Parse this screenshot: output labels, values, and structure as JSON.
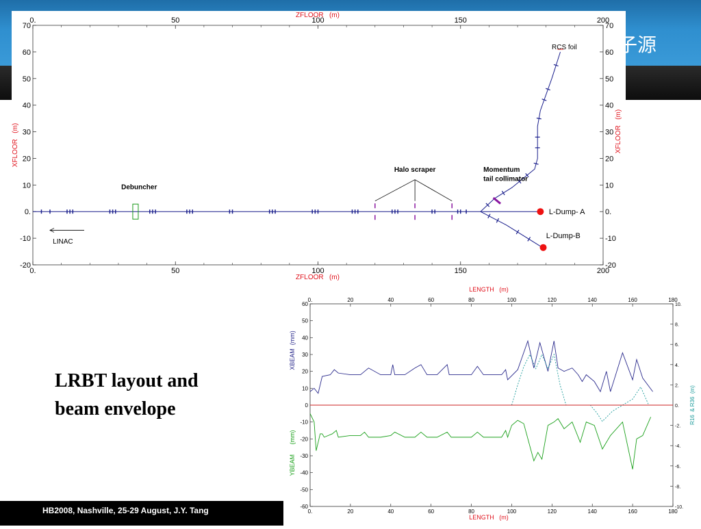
{
  "slide": {
    "header_title": "子源",
    "caption": "LRBT layout and\nbeam envelope",
    "footer": "HB2008, Nashville, 25-29  August, J.Y. Tang"
  },
  "colors": {
    "header_band": "#2f8fcf",
    "axis_label_red": "#e0101a",
    "beamline_blue": "#1a1f8c",
    "xbeam_blue": "#2a2a8c",
    "ybeam_green": "#1aa01a",
    "r16_r36_teal": "#1a9a9a",
    "zero_line_red": "#cc2222",
    "scraper_purple": "#8a16a0",
    "dump_red": "#ee1111"
  },
  "chart_data": [
    {
      "type": "line",
      "title": "",
      "xlabel": "ZFLOOR   (m)",
      "ylabel": "XFLOOR   (m)",
      "xlim": [
        0,
        200
      ],
      "ylim": [
        -20,
        70
      ],
      "x_ticks": [
        0,
        50,
        100,
        150,
        200
      ],
      "x_tick_labels": [
        "0.",
        "50",
        "100",
        "150",
        "200"
      ],
      "y_ticks": [
        -20,
        -10,
        0,
        10,
        20,
        30,
        40,
        50,
        60,
        70
      ],
      "y_tick_labels": [
        "-20",
        "-10",
        "0.",
        "10",
        "20",
        "30",
        "40",
        "50",
        "60",
        "70"
      ],
      "grid": false,
      "series": [
        {
          "x": [
            0,
            157
          ],
          "y": [
            0,
            0
          ]
        },
        {
          "x": [
            157,
            162,
            168,
            176,
            177,
            177,
            178,
            182,
            185
          ],
          "y": [
            0,
            5,
            9,
            16,
            20,
            32,
            38,
            50,
            60
          ]
        },
        {
          "x": [
            157,
            178
          ],
          "y": [
            0,
            0
          ]
        },
        {
          "x": [
            157,
            166,
            178
          ],
          "y": [
            0,
            -5,
            -13
          ]
        }
      ],
      "magnets_z_on_linac": [
        3,
        6,
        12,
        13,
        14,
        27,
        28,
        29,
        41,
        42,
        43,
        54,
        55,
        56,
        69,
        70,
        83,
        84,
        85,
        98,
        99,
        100,
        112,
        113,
        114,
        126,
        127,
        128,
        140,
        141,
        149,
        150,
        152
      ],
      "debuncher_z": 36,
      "halo_scraper_z": [
        120,
        134,
        147
      ],
      "annotations": [
        {
          "text": "RCS foil",
          "x": 182,
          "y": 62
        },
        {
          "text": "Halo scraper",
          "x": 134,
          "y": 16
        },
        {
          "text": "Momentum",
          "x": 158,
          "y": 16
        },
        {
          "text": "tail collimator",
          "x": 158,
          "y": 12.5
        },
        {
          "text": "Debuncher",
          "x": 31,
          "y": 9.5
        },
        {
          "text": "L-Dump- A",
          "x": 181,
          "y": 0
        },
        {
          "text": "L-Dump-B",
          "x": 180,
          "y": -9
        },
        {
          "text": "LINAC",
          "x": 7,
          "y": -11
        }
      ],
      "dumps": [
        {
          "label": "L-Dump- A",
          "x": 178,
          "y": 0
        },
        {
          "label": "L-Dump-B",
          "x": 179,
          "y": -13.5
        }
      ]
    },
    {
      "type": "line",
      "title": "",
      "xlabel": "LENGTH   (m)",
      "ylabel": "XBEAM  (mm)",
      "y2label": "R16  & R36  (m)",
      "xlim": [
        0,
        180
      ],
      "ylim": [
        -60,
        60
      ],
      "y2lim": [
        -10,
        10
      ],
      "x_ticks": [
        0,
        20,
        40,
        60,
        80,
        100,
        120,
        140,
        160,
        180
      ],
      "y_ticks": [
        -60,
        -50,
        -40,
        -30,
        -20,
        -10,
        0,
        10,
        20,
        30,
        40,
        50,
        60
      ],
      "y2_ticks": [
        -10,
        -8,
        -6,
        -4,
        -2,
        0,
        2,
        4,
        6,
        8,
        10
      ],
      "grid": false,
      "series": [
        {
          "name": "XBEAM",
          "axis": "left",
          "x": [
            0,
            2,
            4,
            6,
            10,
            12,
            14,
            20,
            25,
            27,
            29,
            35,
            40,
            41,
            42,
            47,
            52,
            55,
            58,
            63,
            68,
            69,
            70,
            75,
            80,
            83,
            86,
            90,
            95,
            97,
            98,
            103,
            108,
            111,
            114,
            118,
            121,
            123,
            126,
            130,
            133,
            135,
            137,
            141,
            144,
            147,
            149,
            155,
            160,
            162,
            165,
            170
          ],
          "y": [
            8,
            10,
            7,
            17,
            18,
            21,
            19,
            18,
            18,
            20,
            22,
            18,
            18,
            24,
            18,
            18,
            22,
            24,
            18,
            18,
            24,
            18,
            18,
            18,
            18,
            23,
            18,
            18,
            18,
            21,
            15,
            21,
            38,
            22,
            37,
            20,
            38,
            22,
            20,
            22,
            18,
            14,
            18,
            14,
            8,
            20,
            8,
            31,
            15,
            27,
            16,
            8
          ]
        },
        {
          "name": "YBEAM",
          "axis": "left",
          "x": [
            0,
            2,
            3,
            5,
            6,
            7,
            11,
            13,
            14,
            20,
            25,
            27,
            29,
            35,
            40,
            42,
            47,
            52,
            55,
            58,
            63,
            68,
            70,
            75,
            80,
            83,
            86,
            90,
            95,
            97,
            98,
            100,
            103,
            106,
            111,
            113,
            115,
            118,
            121,
            123,
            126,
            130,
            134,
            137,
            141,
            145,
            149,
            155,
            160,
            162,
            165,
            169
          ],
          "y": [
            -5,
            -10,
            -27,
            -17,
            -17,
            -19,
            -17,
            -15,
            -19,
            -18,
            -18,
            -16,
            -19,
            -19,
            -18,
            -16,
            -19,
            -19,
            -16,
            -19,
            -19,
            -16,
            -19,
            -19,
            -19,
            -16,
            -19,
            -19,
            -19,
            -15,
            -19,
            -12,
            -9,
            -11,
            -33,
            -28,
            -32,
            -12,
            -10,
            -8,
            -14,
            -10,
            -22,
            -10,
            -12,
            -26,
            -18,
            -10,
            -38,
            -20,
            -18,
            -7
          ]
        },
        {
          "name": "R16",
          "axis": "right",
          "dashed": true,
          "x": [
            100,
            103,
            106,
            109,
            112,
            115,
            118,
            121,
            124,
            127,
            139,
            142,
            145,
            150,
            155,
            160,
            164,
            168
          ],
          "y": [
            0,
            2,
            3.8,
            5,
            3.6,
            5,
            3.6,
            5,
            2,
            0,
            0,
            -0.7,
            -1.6,
            -0.6,
            0,
            0.6,
            1.8,
            0
          ]
        },
        {
          "name": "R36",
          "axis": "right",
          "x": [
            0,
            180
          ],
          "y": [
            0,
            0
          ]
        }
      ]
    }
  ]
}
